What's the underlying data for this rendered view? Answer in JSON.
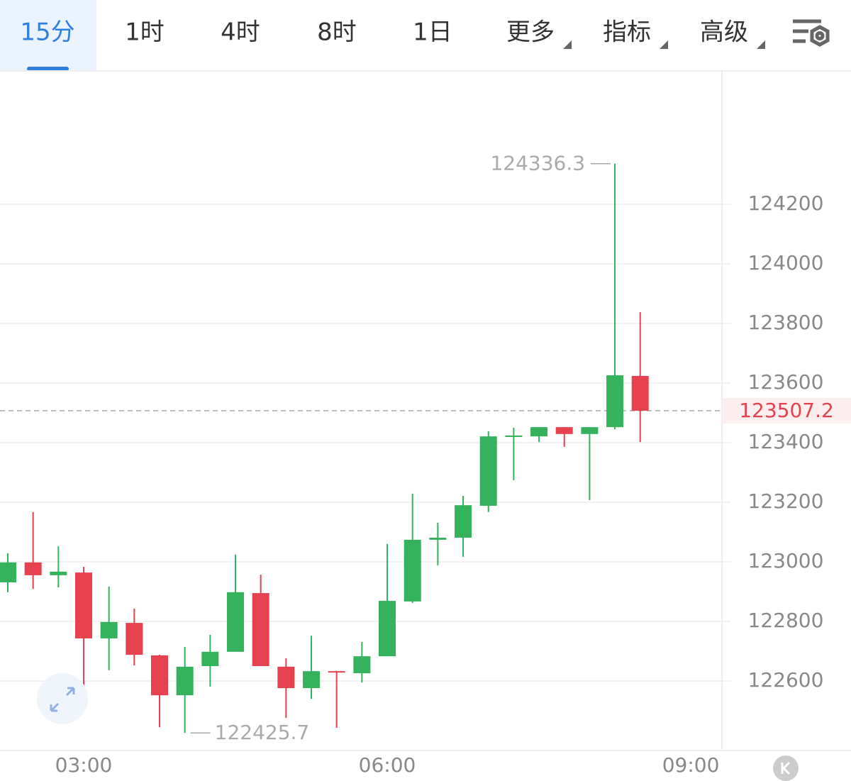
{
  "tabs": {
    "items": [
      "15分",
      "1时",
      "4时",
      "8时",
      "1日",
      "更多",
      "指标",
      "高级"
    ],
    "active": 0
  },
  "chart_data": {
    "type": "candlestick",
    "x": [
      2.25,
      2.5,
      2.75,
      3,
      3.25,
      3.5,
      3.75,
      4,
      4.25,
      4.5,
      4.75,
      5,
      5.25,
      5.5,
      5.75,
      6,
      6.25,
      6.5,
      6.75,
      7,
      7.25,
      7.5,
      7.75,
      8,
      8.25,
      8.5
    ],
    "open": [
      122931,
      122998,
      122955,
      122964,
      122743,
      122795,
      122686,
      122552,
      122650,
      122698,
      122895,
      122648,
      122576,
      122633,
      122626,
      122683,
      122867,
      123074,
      123081,
      123188,
      123419,
      123421,
      123452,
      123429,
      123452,
      123624
    ],
    "high": [
      123029,
      123167,
      123052,
      122983,
      122917,
      122843,
      122688,
      122714,
      122755,
      123024,
      122957,
      122676,
      122752,
      122634,
      122731,
      123060,
      123229,
      123131,
      123221,
      123438,
      123450,
      123452,
      123452,
      123452,
      124336.3,
      123838
    ],
    "low": [
      122898,
      122909,
      122914,
      122571,
      122636,
      122652,
      122445,
      122425.7,
      122581,
      122698,
      122650,
      122476,
      122540,
      122443,
      122595,
      122683,
      122862,
      122988,
      123017,
      123167,
      123274,
      123402,
      123386,
      123207,
      123445,
      123402
    ],
    "close": [
      122998,
      122955,
      122967,
      122743,
      122798,
      122688,
      122552,
      122648,
      122698,
      122898,
      122650,
      122576,
      122633,
      122629,
      122683,
      122869,
      123074,
      123081,
      123190,
      123421,
      123424,
      123452,
      123429,
      123452,
      123626,
      123507.2
    ],
    "up_color": "#35b35c",
    "down_color": "#e6414e",
    "xlim": [
      2.173,
      9.308
    ],
    "xticks": [
      {
        "value": 3,
        "label": "03:00"
      },
      {
        "value": 6,
        "label": "06:00"
      },
      {
        "value": 9,
        "label": "09:00"
      }
    ],
    "ylim": [
      122366.7,
      124647.6
    ],
    "yticks": [
      122600,
      122800,
      123000,
      123200,
      123400,
      123600,
      123800,
      124000,
      124200
    ],
    "grid": true
  }
}
